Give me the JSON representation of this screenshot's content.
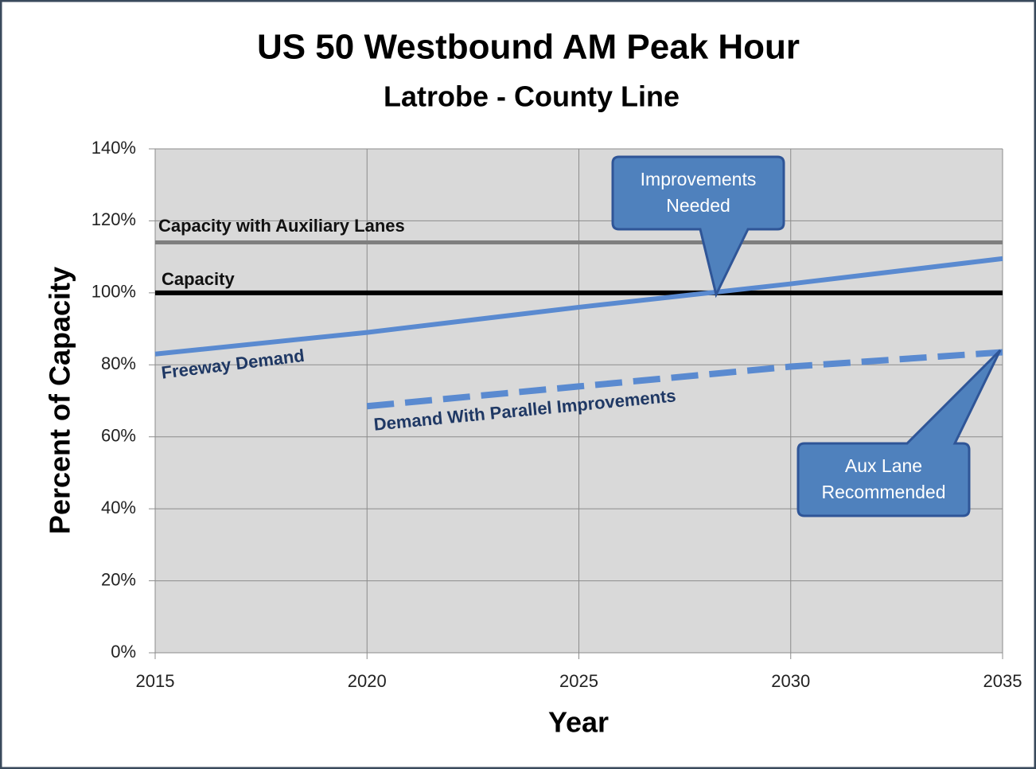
{
  "chart_data": {
    "type": "line",
    "title": "US 50 Westbound AM Peak Hour",
    "subtitle": "Latrobe - County Line",
    "x_label": "Year",
    "y_label": "Percent of Capacity",
    "x": [
      2015,
      2020,
      2025,
      2030,
      2035
    ],
    "series": [
      {
        "name": "Capacity with Auxiliary Lanes",
        "color": "#7f7f7f",
        "values": [
          114,
          114,
          114,
          114,
          114
        ]
      },
      {
        "name": "Capacity",
        "color": "#000000",
        "values": [
          100,
          100,
          100,
          100,
          100
        ]
      },
      {
        "name": "Freeway Demand",
        "color": "#5a8ad0",
        "values": [
          83,
          89,
          96,
          102.5,
          109.5
        ]
      },
      {
        "name": "Demand With Parallel Improvements",
        "color": "#5a8ad0",
        "dashed": true,
        "values": [
          null,
          68.5,
          74,
          79.5,
          83.5
        ]
      }
    ],
    "annotations": [
      {
        "lines": [
          "Improvements",
          "Needed"
        ]
      },
      {
        "lines": [
          "Aux Lane",
          "Recommended"
        ]
      }
    ],
    "xlim": [
      2015,
      2035
    ],
    "ylim": [
      0,
      140
    ],
    "xticks": [
      2015,
      2020,
      2025,
      2030,
      2035
    ],
    "yticks": [
      {
        "value": 0,
        "label": "0%"
      },
      {
        "value": 20,
        "label": "20%"
      },
      {
        "value": 40,
        "label": "40%"
      },
      {
        "value": 60,
        "label": "60%"
      },
      {
        "value": 80,
        "label": "80%"
      },
      {
        "value": 100,
        "label": "100%"
      },
      {
        "value": 120,
        "label": "120%"
      },
      {
        "value": 140,
        "label": "140%"
      }
    ],
    "grid": true
  }
}
